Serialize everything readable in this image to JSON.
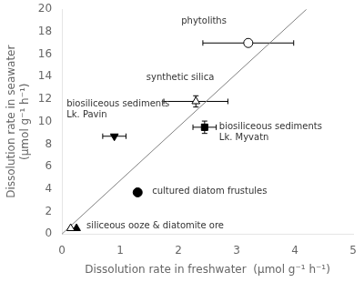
{
  "chart_data": {
    "type": "scatter",
    "xlabel": "Dissolution rate in freshwater  (μmol g⁻¹ h⁻¹)",
    "ylabel": "Dissolution rate in seawater\n(μmol g⁻¹ h⁻¹)",
    "xlim": [
      0,
      5
    ],
    "ylim": [
      0,
      20
    ],
    "xticks": [
      0,
      1,
      2,
      3,
      4,
      5
    ],
    "yticks": [
      0,
      2,
      4,
      6,
      8,
      10,
      12,
      14,
      16,
      18,
      20
    ],
    "grid": false,
    "legend": false,
    "series": [
      {
        "type": "line",
        "color": "gray",
        "x": [
          0,
          4.2
        ],
        "values": [
          0,
          20.0
        ]
      },
      {
        "type": "scatter",
        "color": "black",
        "marker": "circle-open",
        "x": [
          3.2
        ],
        "values": [
          17.0
        ],
        "xerr": [
          0.78
        ],
        "yerr": [
          0.0
        ]
      },
      {
        "type": "scatter",
        "color": "black",
        "marker": "triangle-up-open",
        "x": [
          2.3
        ],
        "values": [
          11.8
        ],
        "xerr": [
          0.55
        ],
        "yerr": [
          0.5
        ]
      },
      {
        "type": "scatter",
        "color": "black",
        "marker": "square",
        "x": [
          2.45
        ],
        "values": [
          9.5
        ],
        "xerr": [
          0.2
        ],
        "yerr": [
          0.55
        ]
      },
      {
        "type": "scatter",
        "color": "black",
        "marker": "triangle-down",
        "x": [
          0.9
        ],
        "values": [
          8.7
        ],
        "xerr": [
          0.2
        ],
        "yerr": [
          0.0
        ]
      },
      {
        "type": "scatter",
        "color": "black",
        "marker": "circle",
        "x": [
          1.3
        ],
        "values": [
          3.7
        ],
        "xerr": [
          0.0
        ],
        "yerr": [
          0.0
        ]
      },
      {
        "type": "scatter",
        "color": "black",
        "marker": "triangle-up-open",
        "x": [
          0.15
        ],
        "values": [
          0.5
        ],
        "xerr": [
          0.0
        ],
        "yerr": [
          0.0
        ]
      },
      {
        "type": "scatter",
        "color": "black",
        "marker": "triangle-up",
        "x": [
          0.25
        ],
        "values": [
          0.5
        ],
        "xerr": [
          0.0
        ],
        "yerr": [
          0.0
        ]
      }
    ],
    "annotations": [
      {
        "text": "phytoliths",
        "x": 2.05,
        "y": 18.5
      },
      {
        "text": "synthetic silica",
        "x": 1.45,
        "y": 13.5
      },
      {
        "text": "biosiliceous sediments\nLk. Myvatn",
        "x": 2.7,
        "y": 8.2
      },
      {
        "text": "biosiliceous sediments\nLk. Pavin",
        "x": 0.08,
        "y": 10.2
      },
      {
        "text": "cultured diatom frustules",
        "x": 1.55,
        "y": 3.4
      },
      {
        "text": "siliceous ooze & diatomite ore",
        "x": 0.42,
        "y": 0.3
      }
    ]
  }
}
